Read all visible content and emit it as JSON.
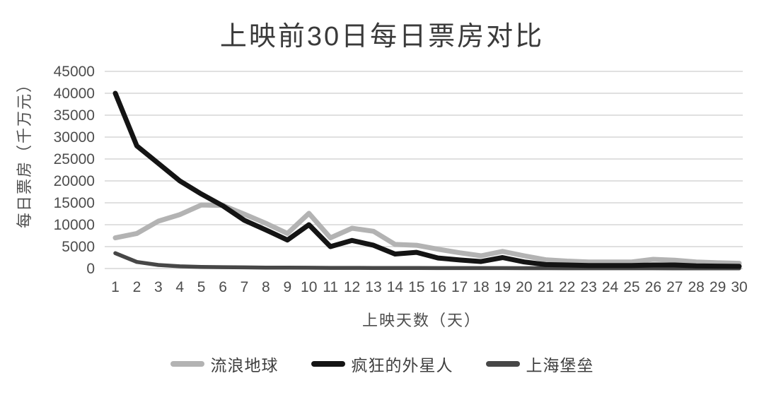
{
  "colors": {
    "background": "#ffffff",
    "gridline": "#d6d6d6",
    "tick_label": "#4d4d4d",
    "title_text": "#3a3a3a",
    "axis_title_text": "#4d4d4d",
    "legend_text": "#3f3f3f"
  },
  "chart_data": {
    "type": "line",
    "title": "上映前30日每日票房对比",
    "xlabel": "上映天数（天）",
    "ylabel": "每日票房（千万元）",
    "ylim": [
      0,
      45000
    ],
    "y_ticks": [
      0,
      5000,
      10000,
      15000,
      20000,
      25000,
      30000,
      35000,
      40000,
      45000
    ],
    "x": [
      1,
      2,
      3,
      4,
      5,
      6,
      7,
      8,
      9,
      10,
      11,
      12,
      13,
      14,
      15,
      16,
      17,
      18,
      19,
      20,
      21,
      22,
      23,
      24,
      25,
      26,
      27,
      28,
      29,
      30
    ],
    "grid": "horizontal",
    "legend_position": "bottom",
    "series": [
      {
        "name": "流浪地球",
        "color": "#b3b3b3",
        "values": [
          7000,
          8000,
          10800,
          12300,
          14500,
          14400,
          12400,
          10300,
          8000,
          12600,
          7000,
          9200,
          8500,
          5500,
          5300,
          4400,
          3600,
          2900,
          3900,
          2900,
          2000,
          1700,
          1500,
          1500,
          1500,
          2100,
          1900,
          1500,
          1300,
          1200
        ]
      },
      {
        "name": "疯狂的外星人",
        "color": "#141414",
        "values": [
          40000,
          28000,
          24000,
          20000,
          17000,
          14300,
          11000,
          8800,
          6500,
          10000,
          5000,
          6400,
          5300,
          3300,
          3700,
          2400,
          1950,
          1600,
          2500,
          1500,
          900,
          800,
          700,
          700,
          700,
          800,
          800,
          600,
          550,
          500
        ]
      },
      {
        "name": "上海堡垒",
        "color": "#474747",
        "values": [
          3500,
          1500,
          800,
          500,
          350,
          300,
          250,
          200,
          200,
          180,
          150,
          150,
          130,
          120,
          110,
          100,
          100,
          90,
          90,
          80,
          80,
          70,
          70,
          60,
          60,
          60,
          50,
          50,
          50,
          50
        ]
      }
    ]
  }
}
